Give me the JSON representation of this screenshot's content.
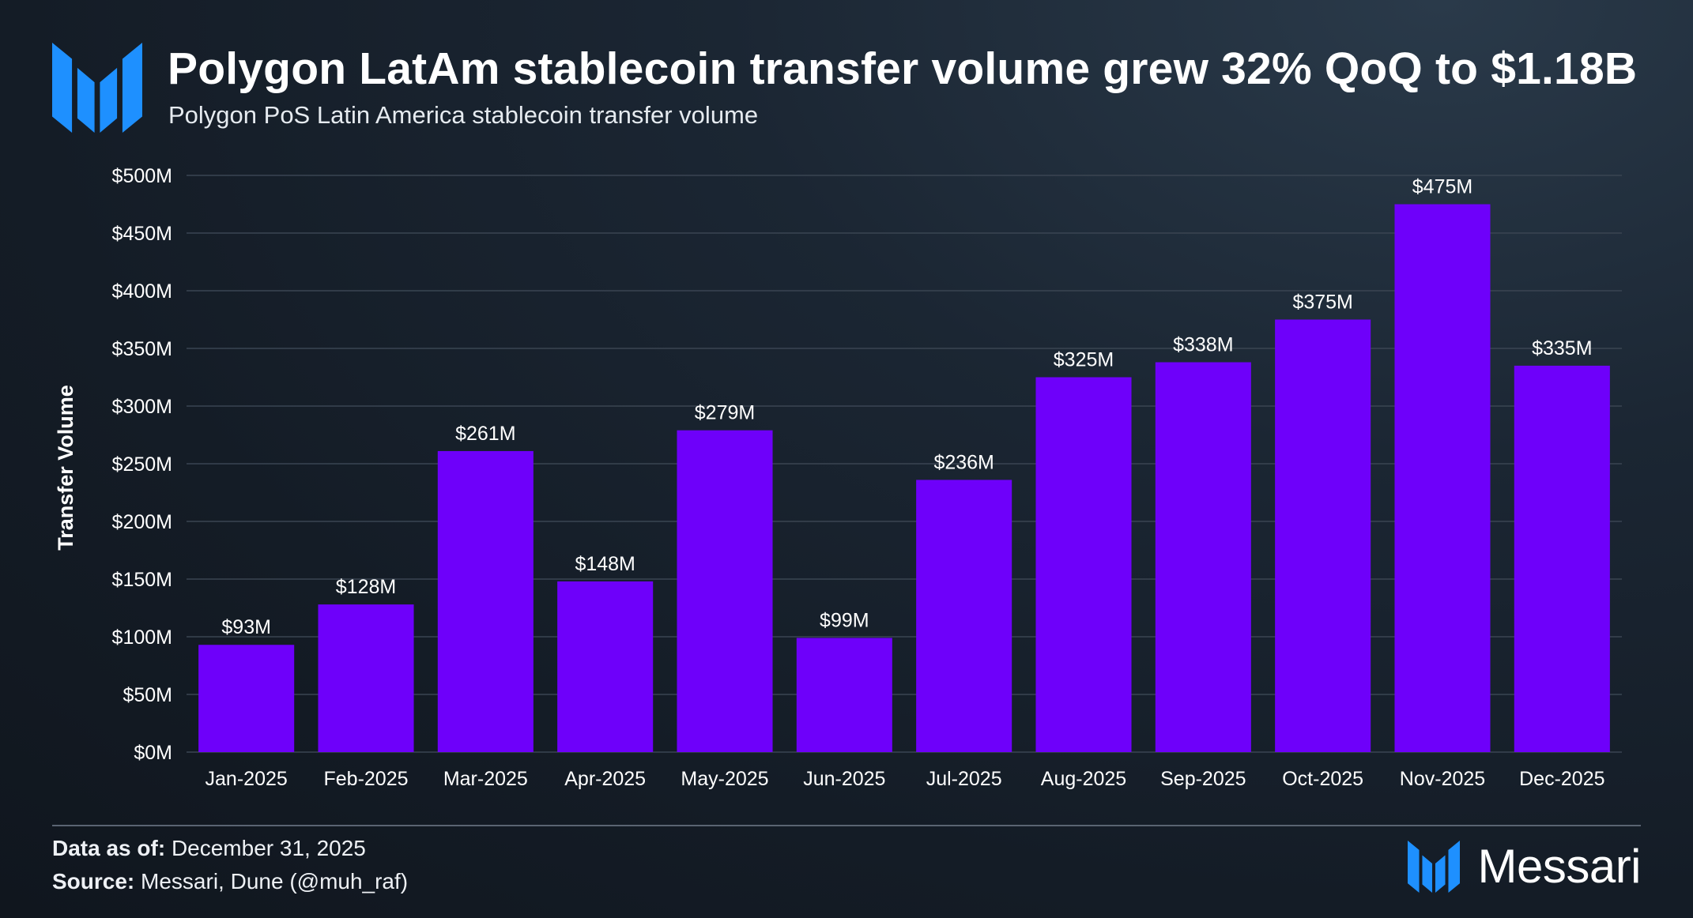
{
  "header": {
    "title": "Polygon LatAm stablecoin transfer volume grew 32% QoQ to $1.18B",
    "subtitle": "Polygon PoS Latin America stablecoin transfer volume",
    "logo_icon": "messari-logo-icon"
  },
  "colors": {
    "bar": "#6e00fa",
    "gridline": "#3a4552",
    "text": "#ffffff",
    "logo_blue": "#1e90ff"
  },
  "chart_data": {
    "type": "bar",
    "categories": [
      "Jan-2025",
      "Feb-2025",
      "Mar-2025",
      "Apr-2025",
      "May-2025",
      "Jun-2025",
      "Jul-2025",
      "Aug-2025",
      "Sep-2025",
      "Oct-2025",
      "Nov-2025",
      "Dec-2025"
    ],
    "values": [
      93,
      128,
      261,
      148,
      279,
      99,
      236,
      325,
      338,
      375,
      475,
      335
    ],
    "data_labels": [
      "$93M",
      "$128M",
      "$261M",
      "$148M",
      "$279M",
      "$99M",
      "$236M",
      "$325M",
      "$338M",
      "$375M",
      "$475M",
      "$335M"
    ],
    "ylabel": "Transfer Volume",
    "xlabel": "",
    "ylim": [
      0,
      500
    ],
    "yticks": [
      0,
      50,
      100,
      150,
      200,
      250,
      300,
      350,
      400,
      450,
      500
    ],
    "ytick_labels": [
      "$0M",
      "$50M",
      "$100M",
      "$150M",
      "$200M",
      "$250M",
      "$300M",
      "$350M",
      "$400M",
      "$450M",
      "$500M"
    ],
    "units": "USD millions",
    "grid": true,
    "legend": "none"
  },
  "footer": {
    "date_label": "Data as of:",
    "date_value": "December 31, 2025",
    "source_label": "Source:",
    "source_value": "Messari, Dune (@muh_raf)",
    "brand_name": "Messari",
    "brand_icon": "messari-logo-icon"
  }
}
